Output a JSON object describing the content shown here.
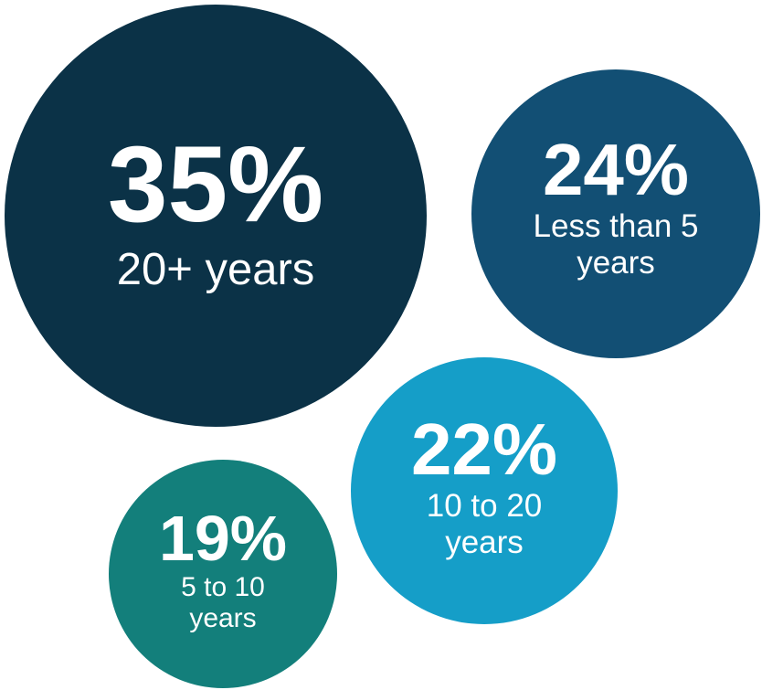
{
  "chart_data": {
    "type": "bubble",
    "categories": [
      "20+ years",
      "Less than 5 years",
      "10 to 20 years",
      "5 to 10 years"
    ],
    "values": [
      35,
      24,
      22,
      19
    ],
    "value_labels": [
      "35%",
      "24%",
      "22%",
      "19%"
    ],
    "unit": "%",
    "title": "",
    "xlabel": "",
    "ylabel": ""
  },
  "bubbles": [
    {
      "id": "b1",
      "name": "bubble-20-plus-years",
      "pct": "35%",
      "label": "20+ years",
      "value": 35,
      "color": "#0b3247"
    },
    {
      "id": "b2",
      "name": "bubble-less-than-5-years",
      "pct": "24%",
      "label": "Less than 5 years",
      "value": 24,
      "color": "#124f74"
    },
    {
      "id": "b3",
      "name": "bubble-10-to-20-years",
      "pct": "22%",
      "label": "10 to 20 years",
      "value": 22,
      "color": "#159ec8"
    },
    {
      "id": "b4",
      "name": "bubble-5-to-10-years",
      "pct": "19%",
      "label": "5 to 10 years",
      "value": 19,
      "color": "#137f7b"
    }
  ]
}
